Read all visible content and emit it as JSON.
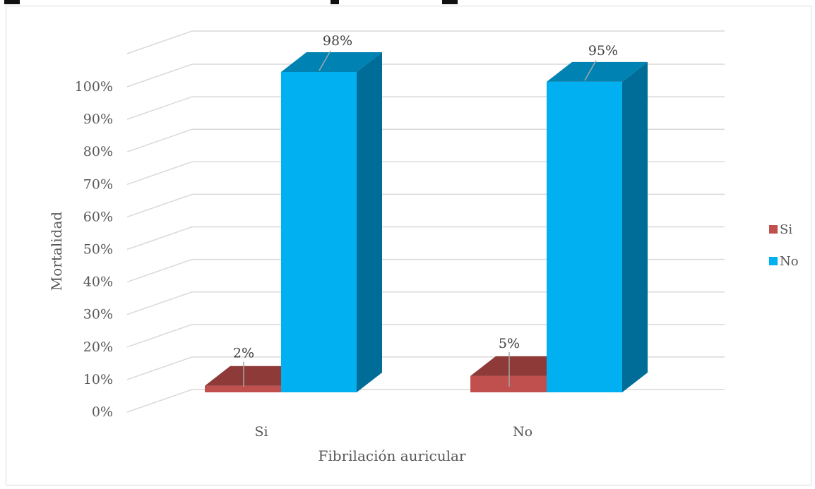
{
  "chart_data": {
    "type": "bar",
    "categories": [
      "Si",
      "No"
    ],
    "series": [
      {
        "name": "Si",
        "values": [
          2,
          5
        ],
        "color": "#c0504d",
        "top_color": "#8e3a38",
        "side_color": "#943634"
      },
      {
        "name": "No",
        "values": [
          98,
          95
        ],
        "color": "#00b0f0",
        "top_color": "#0083b3",
        "side_color": "#006d99"
      }
    ],
    "data_labels": [
      [
        "2%",
        "5%"
      ],
      [
        "98%",
        "95%"
      ]
    ],
    "xlabel": "Fibrilación auricular",
    "ylabel": "Mortalidad",
    "ylim": [
      0,
      100
    ],
    "yticks": [
      "0%",
      "10%",
      "20%",
      "30%",
      "40%",
      "50%",
      "60%",
      "70%",
      "80%",
      "90%",
      "100%"
    ],
    "grid": true,
    "legend_position": "right",
    "style": "3d-clustered-column"
  }
}
